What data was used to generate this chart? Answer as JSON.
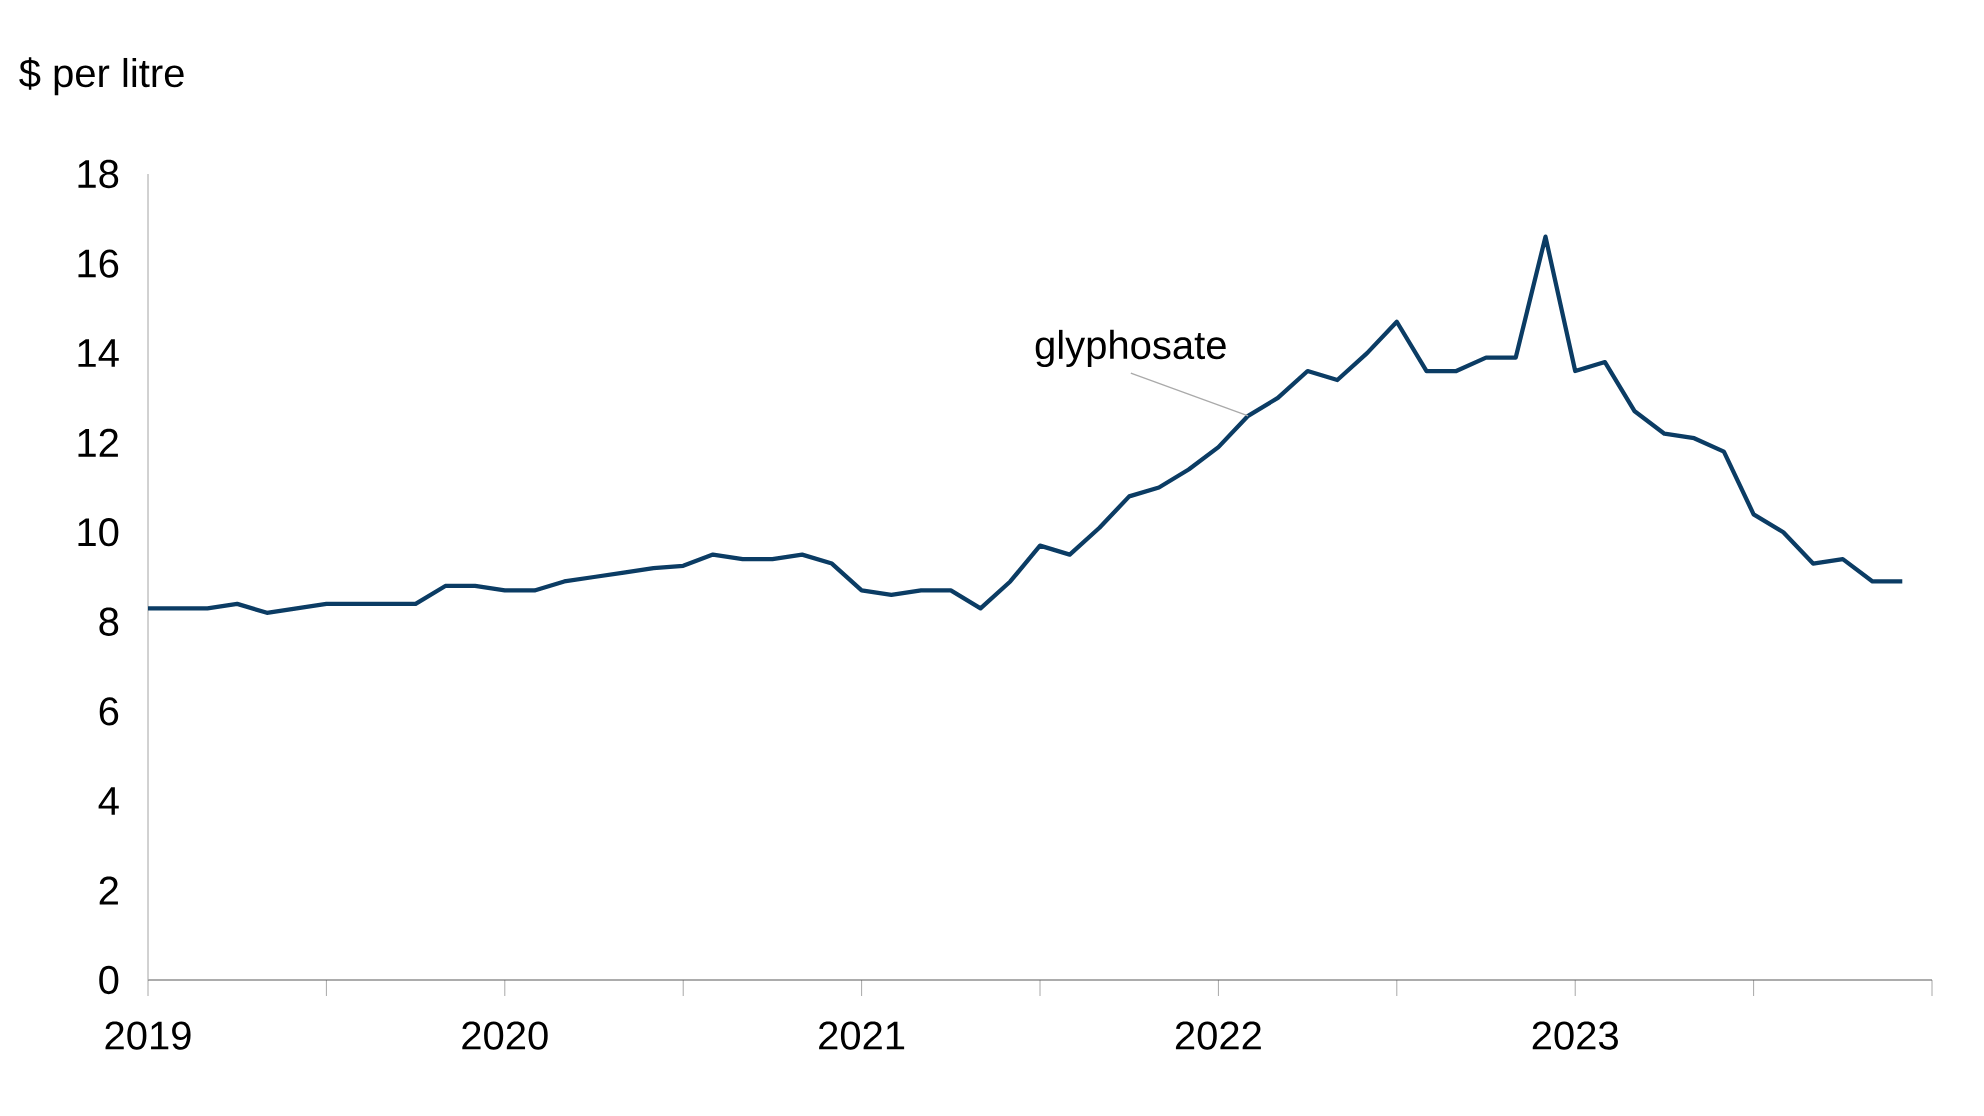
{
  "chart_data": {
    "type": "line",
    "ylabel": "$ per litre",
    "x": [
      "2019-01",
      "2019-02",
      "2019-03",
      "2019-04",
      "2019-05",
      "2019-06",
      "2019-07",
      "2019-08",
      "2019-09",
      "2019-10",
      "2019-11",
      "2019-12",
      "2020-01",
      "2020-02",
      "2020-03",
      "2020-04",
      "2020-05",
      "2020-06",
      "2020-07",
      "2020-08",
      "2020-09",
      "2020-10",
      "2020-11",
      "2020-12",
      "2021-01",
      "2021-02",
      "2021-03",
      "2021-04",
      "2021-05",
      "2021-06",
      "2021-07",
      "2021-08",
      "2021-09",
      "2021-10",
      "2021-11",
      "2021-12",
      "2022-01",
      "2022-02",
      "2022-03",
      "2022-04",
      "2022-05",
      "2022-06",
      "2022-07",
      "2022-08",
      "2022-09",
      "2022-10",
      "2022-11",
      "2022-12",
      "2023-01",
      "2023-02",
      "2023-03",
      "2023-04",
      "2023-05",
      "2023-06",
      "2023-07",
      "2023-08",
      "2023-09",
      "2023-10",
      "2023-11",
      "2023-12"
    ],
    "series": [
      {
        "color": "#0b3c64",
        "values": [
          8.3,
          8.3,
          8.3,
          8.4,
          8.2,
          8.3,
          8.4,
          8.4,
          8.4,
          8.4,
          8.8,
          8.8,
          8.7,
          8.7,
          8.9,
          9.0,
          9.1,
          9.2,
          9.25,
          9.5,
          9.4,
          9.4,
          9.5,
          9.3,
          8.7,
          8.6,
          8.7,
          8.7,
          8.3,
          8.9,
          9.7,
          9.5,
          10.1,
          10.8,
          11.0,
          11.4,
          11.9,
          12.6,
          13.0,
          13.6,
          13.4,
          14.0,
          14.7,
          13.6,
          13.6,
          13.9,
          13.9,
          16.6,
          13.6,
          13.8,
          12.7,
          12.2,
          12.1,
          11.8,
          10.4,
          10.0,
          9.3,
          9.4,
          8.9,
          8.9
        ]
      }
    ],
    "xlim": [
      "2019",
      "2024"
    ],
    "xticks": [
      "2019",
      {
        "value": "2019-07",
        "label": null
      },
      "2020",
      {
        "value": "2020-07",
        "label": null
      },
      "2021",
      {
        "value": "2021-07",
        "label": null
      },
      "2022",
      {
        "value": "2022-07",
        "label": null
      },
      "2023",
      {
        "value": "2023-07",
        "label": null
      },
      {
        "value": "2024",
        "label": null
      }
    ],
    "ylim": [
      0,
      18
    ],
    "yticks": [
      0,
      2,
      4,
      6,
      8,
      10,
      12,
      14,
      16,
      18
    ],
    "annotations": [
      {
        "text": "glyphosate",
        "x": "2022-02",
        "y": 12.6
      }
    ],
    "grid": false
  }
}
